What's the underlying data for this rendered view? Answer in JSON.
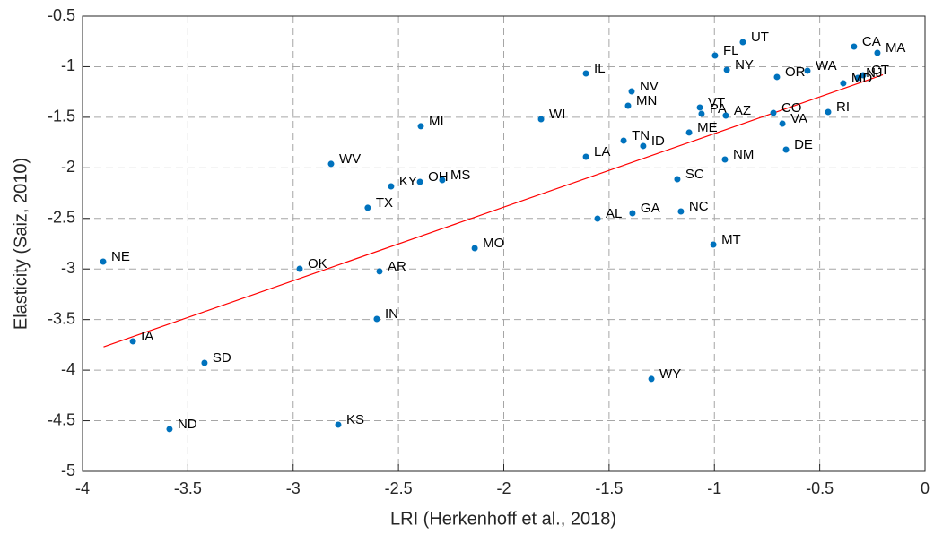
{
  "chart_data": {
    "type": "scatter",
    "x_label": "LRI (Herkenhoff et al., 2018)",
    "y_label": "Elasticity (Saiz, 2010)",
    "xlim": [
      -4,
      0
    ],
    "ylim": [
      -5,
      -0.5
    ],
    "xticks": [
      -4,
      -3.5,
      -3,
      -2.5,
      -2,
      -1.5,
      -1,
      -0.5,
      0
    ],
    "yticks": [
      -5,
      -4.5,
      -4,
      -3.5,
      -3,
      -2.5,
      -2,
      -1.5,
      -1,
      -0.5
    ],
    "grid": true,
    "series": [
      {
        "color": "#0072bd",
        "labels": [
          "UT",
          "CA",
          "MA",
          "FL",
          "NY",
          "IL",
          "WA",
          "OR",
          "CT",
          "NJ",
          "MD",
          "NV",
          "MN",
          "VT",
          "PA",
          "AZ",
          "CO",
          "RI",
          "VA",
          "WI",
          "MI",
          "TN",
          "ID",
          "ME",
          "DE",
          "LA",
          "NM",
          "WV",
          "SC",
          "KY",
          "OH",
          "MS",
          "TX",
          "AL",
          "GA",
          "NC",
          "MT",
          "MO",
          "NE",
          "OK",
          "AR",
          "IN",
          "IA",
          "SD",
          "WY",
          "KS",
          "ND"
        ],
        "x": [
          -0.865,
          -0.337,
          -0.226,
          -0.997,
          -0.941,
          -1.61,
          -0.558,
          -0.703,
          -0.294,
          -0.319,
          -0.388,
          -1.393,
          -1.41,
          -1.069,
          -1.061,
          -0.946,
          -0.72,
          -0.46,
          -0.677,
          -1.823,
          -2.394,
          -1.431,
          -1.338,
          -1.12,
          -0.66,
          -1.61,
          -0.95,
          -2.82,
          -1.176,
          -2.535,
          -2.398,
          -2.292,
          -2.646,
          -1.555,
          -1.389,
          -1.159,
          -1.005,
          -2.138,
          -3.902,
          -2.969,
          -2.59,
          -2.603,
          -3.761,
          -3.421,
          -1.299,
          -2.786,
          -3.587
        ],
        "values": [
          -0.757,
          -0.801,
          -0.863,
          -0.89,
          -1.031,
          -1.067,
          -1.04,
          -1.102,
          -1.085,
          -1.111,
          -1.164,
          -1.244,
          -1.386,
          -1.403,
          -1.465,
          -1.483,
          -1.457,
          -1.448,
          -1.563,
          -1.519,
          -1.589,
          -1.731,
          -1.784,
          -1.651,
          -1.82,
          -1.891,
          -1.917,
          -1.961,
          -2.112,
          -2.183,
          -2.139,
          -2.121,
          -2.395,
          -2.502,
          -2.449,
          -2.431,
          -2.759,
          -2.794,
          -2.927,
          -2.998,
          -3.024,
          -3.494,
          -3.715,
          -3.928,
          -4.087,
          -4.539,
          -4.583
        ]
      }
    ],
    "fit": {
      "color": "#ff0000",
      "x": [
        -3.9,
        -0.2
      ],
      "y": [
        -3.77,
        -1.08
      ]
    }
  }
}
